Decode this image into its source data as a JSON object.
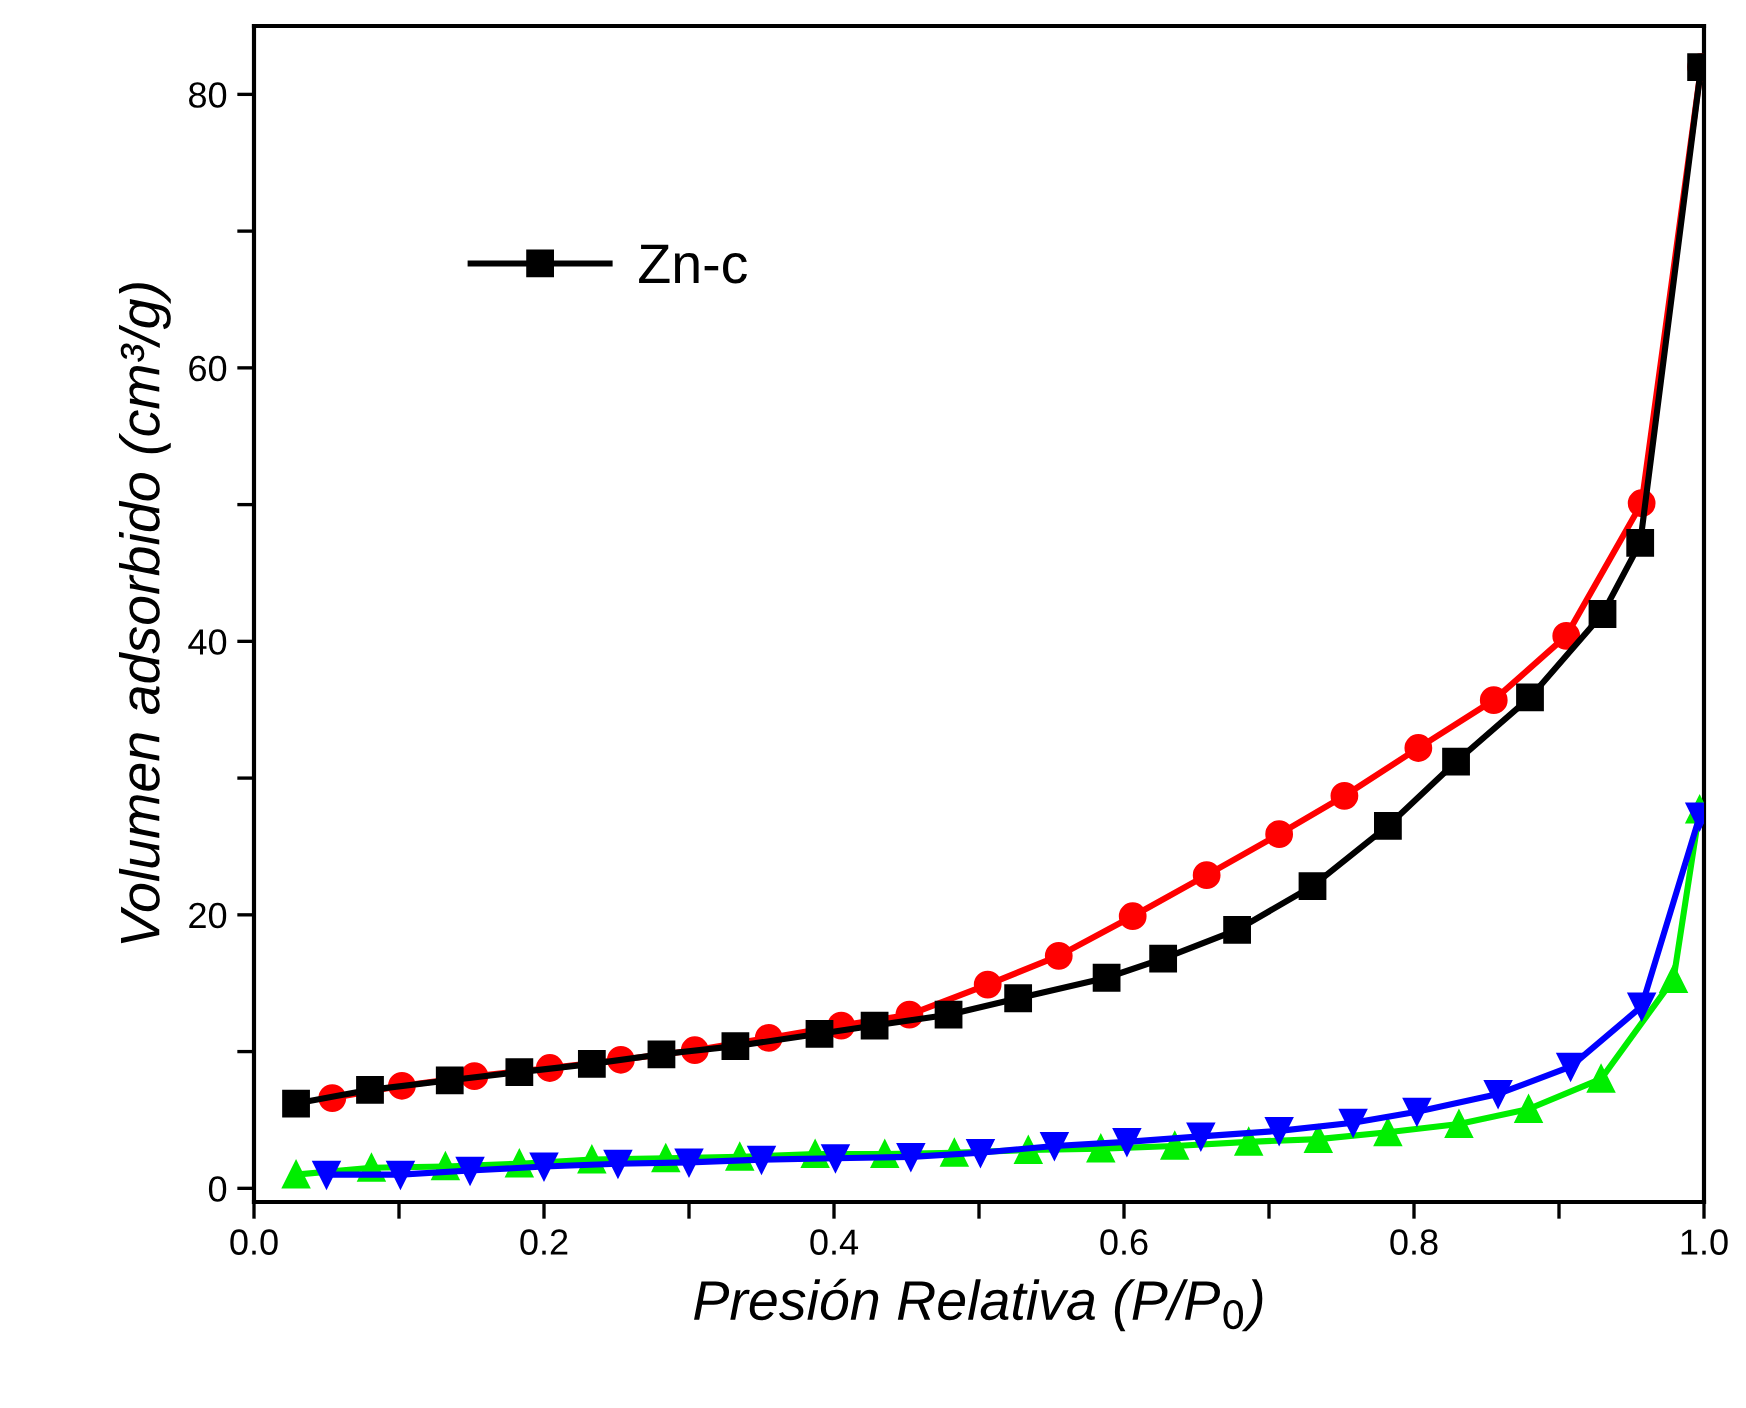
{
  "chart_data": {
    "type": "line",
    "xlabel": "Presión Relativa (P/P$_{0}$)",
    "ylabel": "Volumen adsorbido (cm³/g)",
    "xlim": [
      0,
      1.0
    ],
    "ylim": [
      -1,
      85
    ],
    "xticks": [
      {
        "value": 0,
        "label": "0.0"
      },
      {
        "value": 0.1,
        "label": null
      },
      {
        "value": 0.2,
        "label": "0.2"
      },
      {
        "value": 0.3,
        "label": null
      },
      {
        "value": 0.4,
        "label": "0.4"
      },
      {
        "value": 0.5,
        "label": null
      },
      {
        "value": 0.6,
        "label": "0.6"
      },
      {
        "value": 0.7,
        "label": null
      },
      {
        "value": 0.8,
        "label": "0.8"
      },
      {
        "value": 0.9,
        "label": null
      },
      {
        "value": 1.0,
        "label": "1.0"
      }
    ],
    "yticks": [
      0,
      {
        "value": 10,
        "label": null
      },
      20,
      {
        "value": 30,
        "label": null
      },
      40,
      {
        "value": 50,
        "label": null
      },
      60,
      {
        "value": 70,
        "label": null
      },
      80
    ],
    "grid": false,
    "legend": "top left",
    "series": [
      {
        "color": "#ff0000",
        "marker": "circle",
        "x": [
          0.054,
          0.102,
          0.152,
          0.204,
          0.253,
          0.304,
          0.355,
          0.405,
          0.452,
          0.506,
          0.555,
          0.606,
          0.657,
          0.707,
          0.752,
          0.803,
          0.855,
          0.905,
          0.957,
          0.998
        ],
        "values": [
          6.6,
          7.5,
          8.2,
          8.8,
          9.4,
          10.1,
          11.0,
          11.9,
          12.7,
          14.9,
          17.0,
          19.9,
          22.9,
          25.9,
          28.7,
          32.2,
          35.7,
          40.4,
          50.1,
          82.0
        ]
      },
      {
        "name": "Zn-c",
        "color": "#000000",
        "marker": "square",
        "x": [
          0.029,
          0.08,
          0.135,
          0.183,
          0.233,
          0.281,
          0.332,
          0.39,
          0.428,
          0.479,
          0.527,
          0.588,
          0.627,
          0.678,
          0.73,
          0.782,
          0.829,
          0.88,
          0.93,
          0.956,
          0.998
        ],
        "values": [
          6.2,
          7.2,
          7.9,
          8.5,
          9.1,
          9.8,
          10.4,
          11.3,
          11.9,
          12.7,
          13.9,
          15.4,
          16.8,
          18.9,
          22.1,
          26.5,
          31.2,
          35.9,
          42.0,
          47.2,
          82.0
        ]
      },
      {
        "color": "#00ee00",
        "marker": "triangle",
        "x": [
          0.029,
          0.081,
          0.132,
          0.183,
          0.233,
          0.284,
          0.335,
          0.387,
          0.435,
          0.483,
          0.534,
          0.584,
          0.635,
          0.686,
          0.734,
          0.782,
          0.831,
          0.879,
          0.929,
          0.979,
          0.997
        ],
        "values": [
          1.0,
          1.5,
          1.6,
          1.8,
          2.1,
          2.2,
          2.3,
          2.5,
          2.5,
          2.6,
          2.8,
          2.9,
          3.1,
          3.4,
          3.6,
          4.1,
          4.7,
          5.8,
          8.0,
          15.3,
          27.7
        ]
      },
      {
        "color": "#0000ff",
        "marker": "triangle_down",
        "x": [
          0.05,
          0.101,
          0.149,
          0.2,
          0.251,
          0.3,
          0.35,
          0.401,
          0.453,
          0.501,
          0.552,
          0.602,
          0.653,
          0.707,
          0.758,
          0.802,
          0.858,
          0.908,
          0.957,
          0.997
        ],
        "values": [
          1.0,
          1.0,
          1.3,
          1.6,
          1.8,
          1.9,
          2.1,
          2.2,
          2.3,
          2.6,
          3.1,
          3.4,
          3.8,
          4.2,
          4.8,
          5.6,
          6.9,
          8.9,
          13.3,
          27.2
        ]
      }
    ]
  }
}
